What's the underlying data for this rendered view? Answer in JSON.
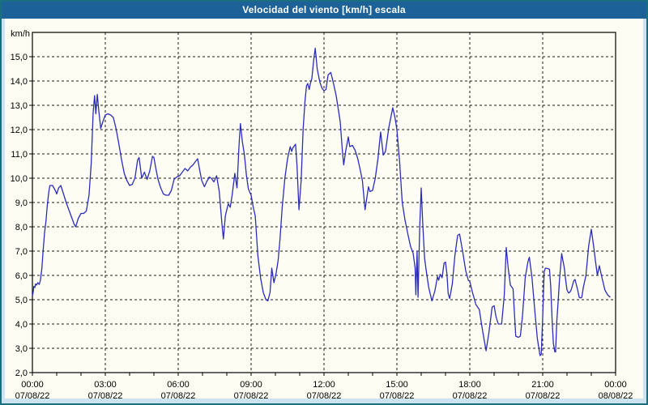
{
  "title": "Velocidad del viento [km/h] escala",
  "colors": {
    "window_border": "#1a6f7f",
    "window_background": "#cee3f2",
    "titlebar_background": "#1c6197",
    "titlebar_text": "#ffffff",
    "panel_background": "#fdfdf4",
    "grid_color": "#1a1a1a",
    "axis_color": "#000000",
    "series_color": "#2c2cbb"
  },
  "chart_data": {
    "type": "line",
    "title": "Velocidad del viento [km/h] escala",
    "unit_label": "km/h",
    "ylim": [
      2,
      16
    ],
    "xlim_hours": [
      0,
      24
    ],
    "grid": "dashed",
    "legend": "none",
    "y_ticks": [
      {
        "value": 15,
        "label": "15,0"
      },
      {
        "value": 14,
        "label": "14,0"
      },
      {
        "value": 13,
        "label": "13,0"
      },
      {
        "value": 12,
        "label": "12,0"
      },
      {
        "value": 11,
        "label": "11,0"
      },
      {
        "value": 10,
        "label": "10,0"
      },
      {
        "value": 9,
        "label": "9,0"
      },
      {
        "value": 8,
        "label": "8,0"
      },
      {
        "value": 7,
        "label": "7,0"
      },
      {
        "value": 6,
        "label": "6,0"
      },
      {
        "value": 5,
        "label": "5,0"
      },
      {
        "value": 4,
        "label": "4,0"
      },
      {
        "value": 3,
        "label": "3,0"
      },
      {
        "value": 2,
        "label": "2,0"
      }
    ],
    "x_ticks": [
      {
        "hour": 0,
        "time": "00:00",
        "date": "07/08/22"
      },
      {
        "hour": 3,
        "time": "03:00",
        "date": "07/08/22"
      },
      {
        "hour": 6,
        "time": "06:00",
        "date": "07/08/22"
      },
      {
        "hour": 9,
        "time": "09:00",
        "date": "07/08/22"
      },
      {
        "hour": 12,
        "time": "12:00",
        "date": "07/08/22"
      },
      {
        "hour": 15,
        "time": "15:00",
        "date": "07/08/22"
      },
      {
        "hour": 18,
        "time": "18:00",
        "date": "07/08/22"
      },
      {
        "hour": 21,
        "time": "21:00",
        "date": "07/08/22"
      },
      {
        "hour": 24,
        "time": "00:00",
        "date": "08/08/22"
      }
    ],
    "minor_x_tick_step_hours": 1,
    "series": [
      {
        "name": "Velocidad del viento",
        "color": "#2c2cbb",
        "points": [
          [
            0.0,
            5.15
          ],
          [
            0.03,
            5.3
          ],
          [
            0.06,
            5.55
          ],
          [
            0.1,
            5.5
          ],
          [
            0.13,
            5.65
          ],
          [
            0.17,
            5.6
          ],
          [
            0.22,
            5.7
          ],
          [
            0.28,
            5.63
          ],
          [
            0.33,
            5.8
          ],
          [
            0.39,
            6.3
          ],
          [
            0.44,
            7.0
          ],
          [
            0.5,
            7.75
          ],
          [
            0.56,
            8.25
          ],
          [
            0.61,
            8.85
          ],
          [
            0.67,
            9.4
          ],
          [
            0.72,
            9.7
          ],
          [
            0.83,
            9.7
          ],
          [
            0.94,
            9.5
          ],
          [
            1.0,
            9.35
          ],
          [
            1.08,
            9.6
          ],
          [
            1.17,
            9.7
          ],
          [
            1.28,
            9.35
          ],
          [
            1.39,
            9.0
          ],
          [
            1.5,
            8.7
          ],
          [
            1.61,
            8.4
          ],
          [
            1.72,
            8.1
          ],
          [
            1.78,
            8.0
          ],
          [
            1.89,
            8.35
          ],
          [
            2.0,
            8.55
          ],
          [
            2.11,
            8.55
          ],
          [
            2.22,
            8.65
          ],
          [
            2.33,
            9.3
          ],
          [
            2.42,
            10.6
          ],
          [
            2.5,
            12.7
          ],
          [
            2.56,
            13.4
          ],
          [
            2.61,
            12.65
          ],
          [
            2.67,
            13.45
          ],
          [
            2.73,
            12.8
          ],
          [
            2.81,
            12.05
          ],
          [
            2.89,
            12.3
          ],
          [
            3.0,
            12.6
          ],
          [
            3.11,
            12.65
          ],
          [
            3.22,
            12.6
          ],
          [
            3.33,
            12.5
          ],
          [
            3.44,
            12.05
          ],
          [
            3.56,
            11.4
          ],
          [
            3.67,
            10.75
          ],
          [
            3.78,
            10.2
          ],
          [
            3.89,
            9.9
          ],
          [
            4.0,
            9.7
          ],
          [
            4.11,
            9.75
          ],
          [
            4.22,
            10.0
          ],
          [
            4.33,
            10.75
          ],
          [
            4.39,
            10.85
          ],
          [
            4.5,
            10.0
          ],
          [
            4.61,
            10.25
          ],
          [
            4.72,
            9.95
          ],
          [
            4.83,
            10.3
          ],
          [
            4.94,
            10.9
          ],
          [
            5.0,
            10.85
          ],
          [
            5.08,
            10.4
          ],
          [
            5.17,
            9.95
          ],
          [
            5.28,
            9.6
          ],
          [
            5.39,
            9.35
          ],
          [
            5.5,
            9.3
          ],
          [
            5.61,
            9.3
          ],
          [
            5.72,
            9.5
          ],
          [
            5.83,
            9.95
          ],
          [
            5.94,
            10.05
          ],
          [
            6.06,
            10.1
          ],
          [
            6.17,
            10.25
          ],
          [
            6.28,
            10.4
          ],
          [
            6.39,
            10.3
          ],
          [
            6.5,
            10.45
          ],
          [
            6.61,
            10.55
          ],
          [
            6.72,
            10.7
          ],
          [
            6.8,
            10.8
          ],
          [
            6.89,
            10.3
          ],
          [
            6.97,
            9.9
          ],
          [
            7.08,
            9.65
          ],
          [
            7.17,
            9.85
          ],
          [
            7.28,
            10.05
          ],
          [
            7.36,
            10.0
          ],
          [
            7.47,
            9.85
          ],
          [
            7.58,
            10.1
          ],
          [
            7.69,
            9.45
          ],
          [
            7.81,
            8.0
          ],
          [
            7.86,
            7.5
          ],
          [
            7.94,
            8.45
          ],
          [
            8.06,
            8.95
          ],
          [
            8.14,
            8.8
          ],
          [
            8.22,
            9.3
          ],
          [
            8.33,
            10.2
          ],
          [
            8.42,
            9.6
          ],
          [
            8.5,
            11.3
          ],
          [
            8.56,
            12.25
          ],
          [
            8.64,
            11.5
          ],
          [
            8.72,
            11.0
          ],
          [
            8.81,
            10.1
          ],
          [
            8.89,
            9.55
          ],
          [
            9.0,
            9.3
          ],
          [
            9.08,
            8.85
          ],
          [
            9.17,
            8.45
          ],
          [
            9.28,
            6.8
          ],
          [
            9.39,
            5.9
          ],
          [
            9.5,
            5.3
          ],
          [
            9.61,
            5.0
          ],
          [
            9.69,
            4.95
          ],
          [
            9.78,
            5.3
          ],
          [
            9.85,
            6.3
          ],
          [
            9.94,
            5.7
          ],
          [
            10.03,
            6.1
          ],
          [
            10.11,
            6.6
          ],
          [
            10.19,
            7.5
          ],
          [
            10.28,
            8.8
          ],
          [
            10.39,
            10.0
          ],
          [
            10.5,
            10.8
          ],
          [
            10.61,
            11.3
          ],
          [
            10.67,
            11.1
          ],
          [
            10.72,
            11.25
          ],
          [
            10.83,
            11.4
          ],
          [
            10.89,
            10.5
          ],
          [
            10.97,
            8.7
          ],
          [
            11.06,
            9.9
          ],
          [
            11.14,
            12.0
          ],
          [
            11.22,
            13.2
          ],
          [
            11.28,
            13.8
          ],
          [
            11.33,
            13.9
          ],
          [
            11.39,
            13.65
          ],
          [
            11.44,
            13.9
          ],
          [
            11.5,
            14.1
          ],
          [
            11.58,
            14.9
          ],
          [
            11.64,
            15.35
          ],
          [
            11.72,
            14.5
          ],
          [
            11.83,
            13.95
          ],
          [
            11.92,
            13.7
          ],
          [
            12.0,
            13.6
          ],
          [
            12.08,
            13.65
          ],
          [
            12.17,
            14.25
          ],
          [
            12.28,
            14.35
          ],
          [
            12.39,
            13.9
          ],
          [
            12.5,
            13.4
          ],
          [
            12.61,
            12.7
          ],
          [
            12.67,
            12.3
          ],
          [
            12.75,
            11.2
          ],
          [
            12.81,
            10.55
          ],
          [
            12.89,
            11.1
          ],
          [
            13.0,
            11.7
          ],
          [
            13.06,
            11.3
          ],
          [
            13.17,
            11.35
          ],
          [
            13.28,
            11.15
          ],
          [
            13.39,
            10.8
          ],
          [
            13.5,
            10.3
          ],
          [
            13.58,
            9.9
          ],
          [
            13.69,
            8.7
          ],
          [
            13.83,
            9.65
          ],
          [
            13.89,
            9.45
          ],
          [
            14.0,
            9.5
          ],
          [
            14.11,
            10.0
          ],
          [
            14.22,
            10.8
          ],
          [
            14.33,
            11.9
          ],
          [
            14.44,
            10.95
          ],
          [
            14.53,
            11.1
          ],
          [
            14.67,
            12.1
          ],
          [
            14.83,
            12.9
          ],
          [
            14.92,
            12.5
          ],
          [
            15.0,
            12.0
          ],
          [
            15.11,
            10.7
          ],
          [
            15.22,
            9.0
          ],
          [
            15.33,
            8.3
          ],
          [
            15.44,
            7.75
          ],
          [
            15.56,
            7.2
          ],
          [
            15.67,
            6.9
          ],
          [
            15.75,
            6.3
          ],
          [
            15.78,
            5.2
          ],
          [
            15.83,
            7.0
          ],
          [
            15.87,
            5.1
          ],
          [
            15.94,
            8.0
          ],
          [
            16.0,
            9.6
          ],
          [
            16.06,
            8.2
          ],
          [
            16.14,
            6.7
          ],
          [
            16.22,
            6.1
          ],
          [
            16.31,
            5.5
          ],
          [
            16.44,
            4.95
          ],
          [
            16.56,
            5.35
          ],
          [
            16.67,
            5.95
          ],
          [
            16.72,
            5.8
          ],
          [
            16.78,
            6.05
          ],
          [
            16.86,
            5.9
          ],
          [
            16.94,
            6.5
          ],
          [
            17.0,
            6.55
          ],
          [
            17.06,
            6.05
          ],
          [
            17.11,
            5.25
          ],
          [
            17.17,
            5.05
          ],
          [
            17.28,
            5.65
          ],
          [
            17.39,
            6.85
          ],
          [
            17.5,
            7.65
          ],
          [
            17.58,
            7.7
          ],
          [
            17.72,
            6.9
          ],
          [
            17.83,
            6.2
          ],
          [
            17.94,
            5.8
          ],
          [
            18.0,
            5.75
          ],
          [
            18.11,
            5.3
          ],
          [
            18.25,
            4.8
          ],
          [
            18.39,
            4.6
          ],
          [
            18.53,
            3.7
          ],
          [
            18.67,
            2.9
          ],
          [
            18.78,
            3.6
          ],
          [
            18.92,
            4.7
          ],
          [
            19.0,
            4.75
          ],
          [
            19.08,
            4.3
          ],
          [
            19.17,
            4.0
          ],
          [
            19.31,
            4.0
          ],
          [
            19.42,
            5.2
          ],
          [
            19.5,
            7.15
          ],
          [
            19.58,
            6.3
          ],
          [
            19.67,
            5.6
          ],
          [
            19.78,
            5.45
          ],
          [
            19.89,
            3.5
          ],
          [
            20.0,
            3.45
          ],
          [
            20.08,
            3.5
          ],
          [
            20.17,
            4.35
          ],
          [
            20.28,
            5.9
          ],
          [
            20.39,
            6.55
          ],
          [
            20.45,
            6.75
          ],
          [
            20.56,
            5.9
          ],
          [
            20.67,
            4.6
          ],
          [
            20.78,
            3.4
          ],
          [
            20.89,
            2.7
          ],
          [
            20.94,
            2.75
          ],
          [
            21.0,
            4.3
          ],
          [
            21.06,
            6.15
          ],
          [
            21.11,
            6.3
          ],
          [
            21.22,
            6.28
          ],
          [
            21.28,
            6.25
          ],
          [
            21.33,
            5.55
          ],
          [
            21.39,
            4.1
          ],
          [
            21.44,
            3.2
          ],
          [
            21.5,
            2.85
          ],
          [
            21.53,
            2.85
          ],
          [
            21.58,
            4.1
          ],
          [
            21.64,
            5.0
          ],
          [
            21.69,
            5.8
          ],
          [
            21.78,
            6.9
          ],
          [
            21.89,
            6.3
          ],
          [
            21.94,
            5.85
          ],
          [
            22.0,
            5.4
          ],
          [
            22.06,
            5.28
          ],
          [
            22.11,
            5.3
          ],
          [
            22.17,
            5.4
          ],
          [
            22.28,
            5.78
          ],
          [
            22.33,
            5.83
          ],
          [
            22.44,
            5.4
          ],
          [
            22.5,
            5.1
          ],
          [
            22.56,
            5.07
          ],
          [
            22.61,
            5.1
          ],
          [
            22.67,
            5.5
          ],
          [
            22.78,
            6.0
          ],
          [
            22.89,
            7.2
          ],
          [
            23.0,
            7.9
          ],
          [
            23.11,
            7.1
          ],
          [
            23.17,
            6.6
          ],
          [
            23.25,
            6.0
          ],
          [
            23.33,
            6.4
          ],
          [
            23.44,
            5.9
          ],
          [
            23.56,
            5.4
          ],
          [
            23.67,
            5.2
          ],
          [
            23.78,
            5.1
          ]
        ]
      }
    ]
  }
}
